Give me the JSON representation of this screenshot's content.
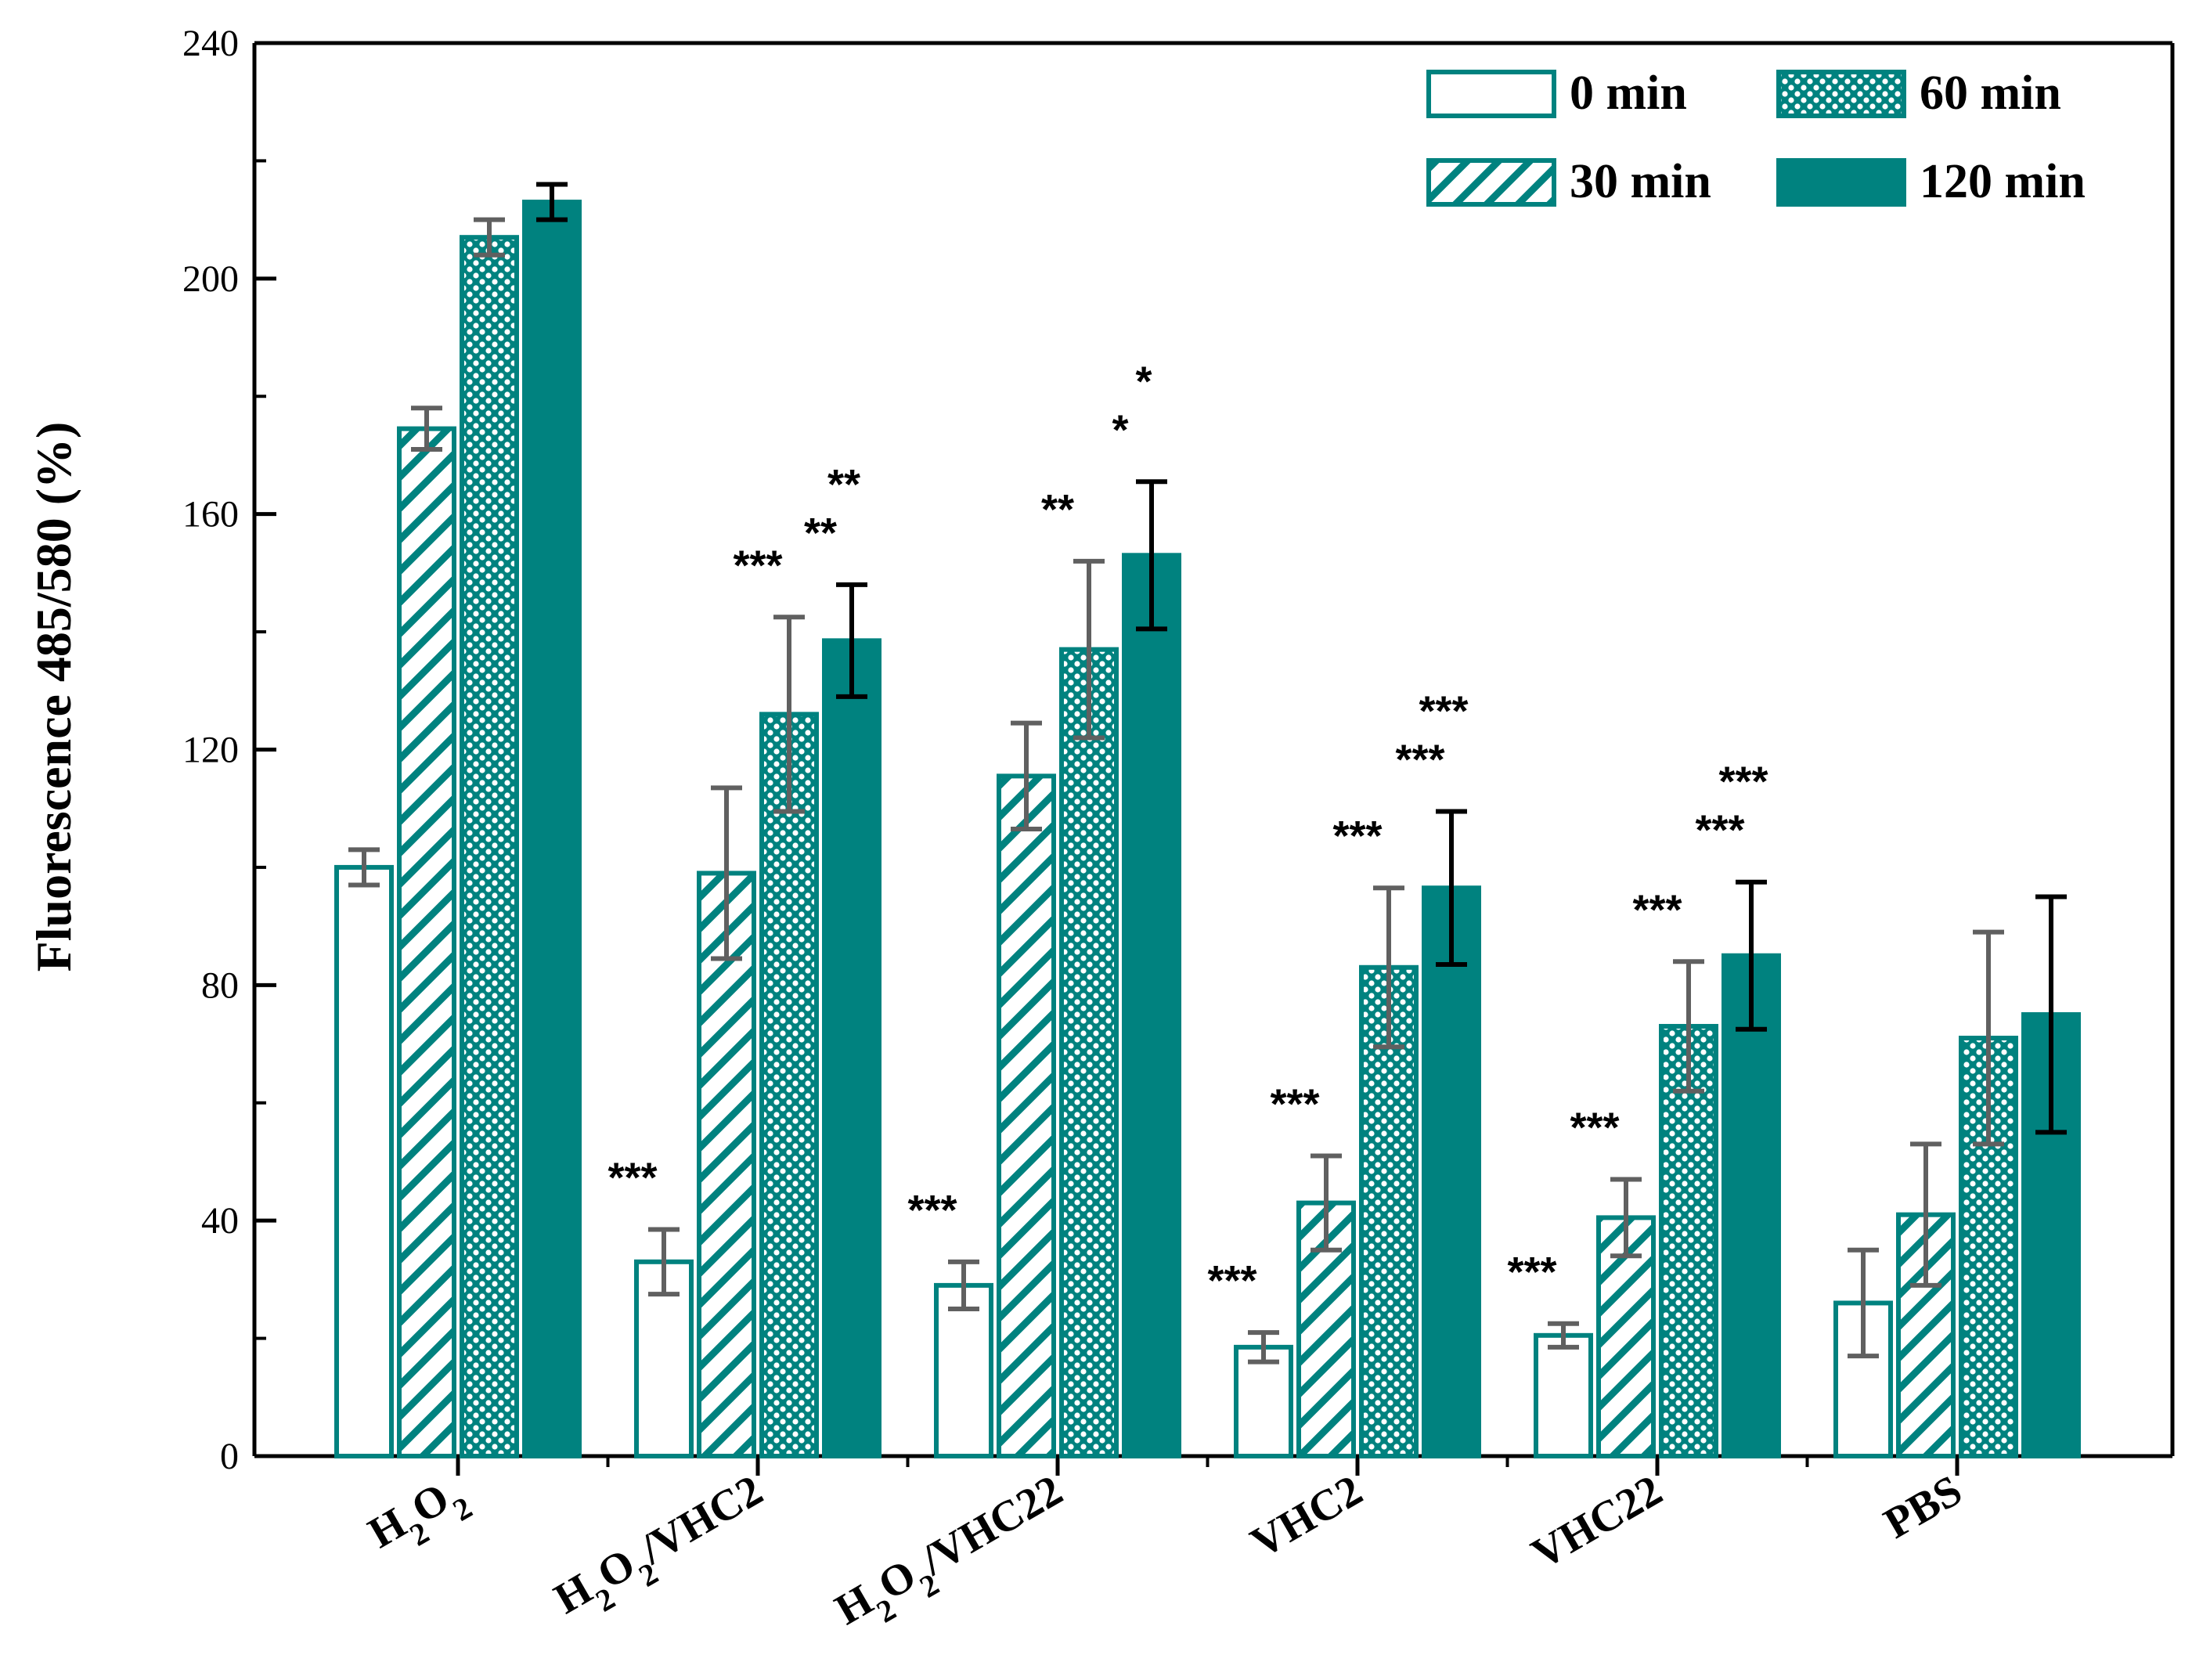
{
  "colors": {
    "teal": "#00827f",
    "error_grey": "#606060",
    "error_black": "#000000",
    "axis": "#000000",
    "background": "#ffffff"
  },
  "chart_data": {
    "type": "bar",
    "title": "",
    "xlabel": "",
    "ylabel": "Fluorescence 485/580 (%)",
    "ylim": [
      0,
      240
    ],
    "yticks": [
      0,
      40,
      80,
      120,
      160,
      200,
      240
    ],
    "ytick_labels": [
      "0",
      "40",
      "80",
      "120",
      "160",
      "200",
      "240"
    ],
    "grid": false,
    "legend_position": "top-right",
    "categories": [
      {
        "base": "H",
        "sub1": "2",
        "mid": "O",
        "sub2": "2",
        "tail": ""
      },
      {
        "base": "H",
        "sub1": "2",
        "mid": "O",
        "sub2": "2",
        "tail": "/VHC2"
      },
      {
        "base": "H",
        "sub1": "2",
        "mid": "O",
        "sub2": "2",
        "tail": "/VHC22"
      },
      {
        "base": "VHC2",
        "sub1": "",
        "mid": "",
        "sub2": "",
        "tail": ""
      },
      {
        "base": "VHC22",
        "sub1": "",
        "mid": "",
        "sub2": "",
        "tail": ""
      },
      {
        "base": "PBS",
        "sub1": "",
        "mid": "",
        "sub2": "",
        "tail": ""
      }
    ],
    "series": [
      {
        "name": "0 min",
        "pattern": "empty",
        "values": [
          100,
          33,
          29,
          18.5,
          20.5,
          26
        ],
        "errors": [
          3,
          5.5,
          4,
          2.5,
          2,
          9
        ],
        "significance": [
          "",
          "***",
          "***",
          "***",
          "***",
          ""
        ]
      },
      {
        "name": "30 min",
        "pattern": "hatch",
        "values": [
          174.5,
          99,
          115.5,
          43,
          40.5,
          41
        ],
        "errors": [
          3.5,
          14.5,
          9,
          8,
          6.5,
          12
        ],
        "significance": [
          "",
          "",
          "",
          "***",
          "***",
          ""
        ]
      },
      {
        "name": "60 min",
        "pattern": "crosshatch",
        "values": [
          207,
          126,
          137,
          83,
          73,
          71
        ],
        "errors": [
          3,
          16.5,
          15,
          13.5,
          11,
          18
        ],
        "significance": [
          "",
          "***",
          "**",
          "***",
          "***",
          ""
        ]
      },
      {
        "name": "120 min",
        "pattern": "solid",
        "values": [
          213,
          138.5,
          153,
          96.5,
          85,
          75
        ],
        "errors": [
          3,
          9.5,
          12.5,
          13,
          12.5,
          20
        ],
        "significance": [
          "",
          "**",
          "*",
          "***",
          "***",
          ""
        ]
      }
    ],
    "extra_annotations": [
      {
        "category_index": 1,
        "text": "**"
      },
      {
        "category_index": 2,
        "text": "*"
      },
      {
        "category_index": 3,
        "text": "***"
      },
      {
        "category_index": 4,
        "text": "***"
      }
    ]
  }
}
